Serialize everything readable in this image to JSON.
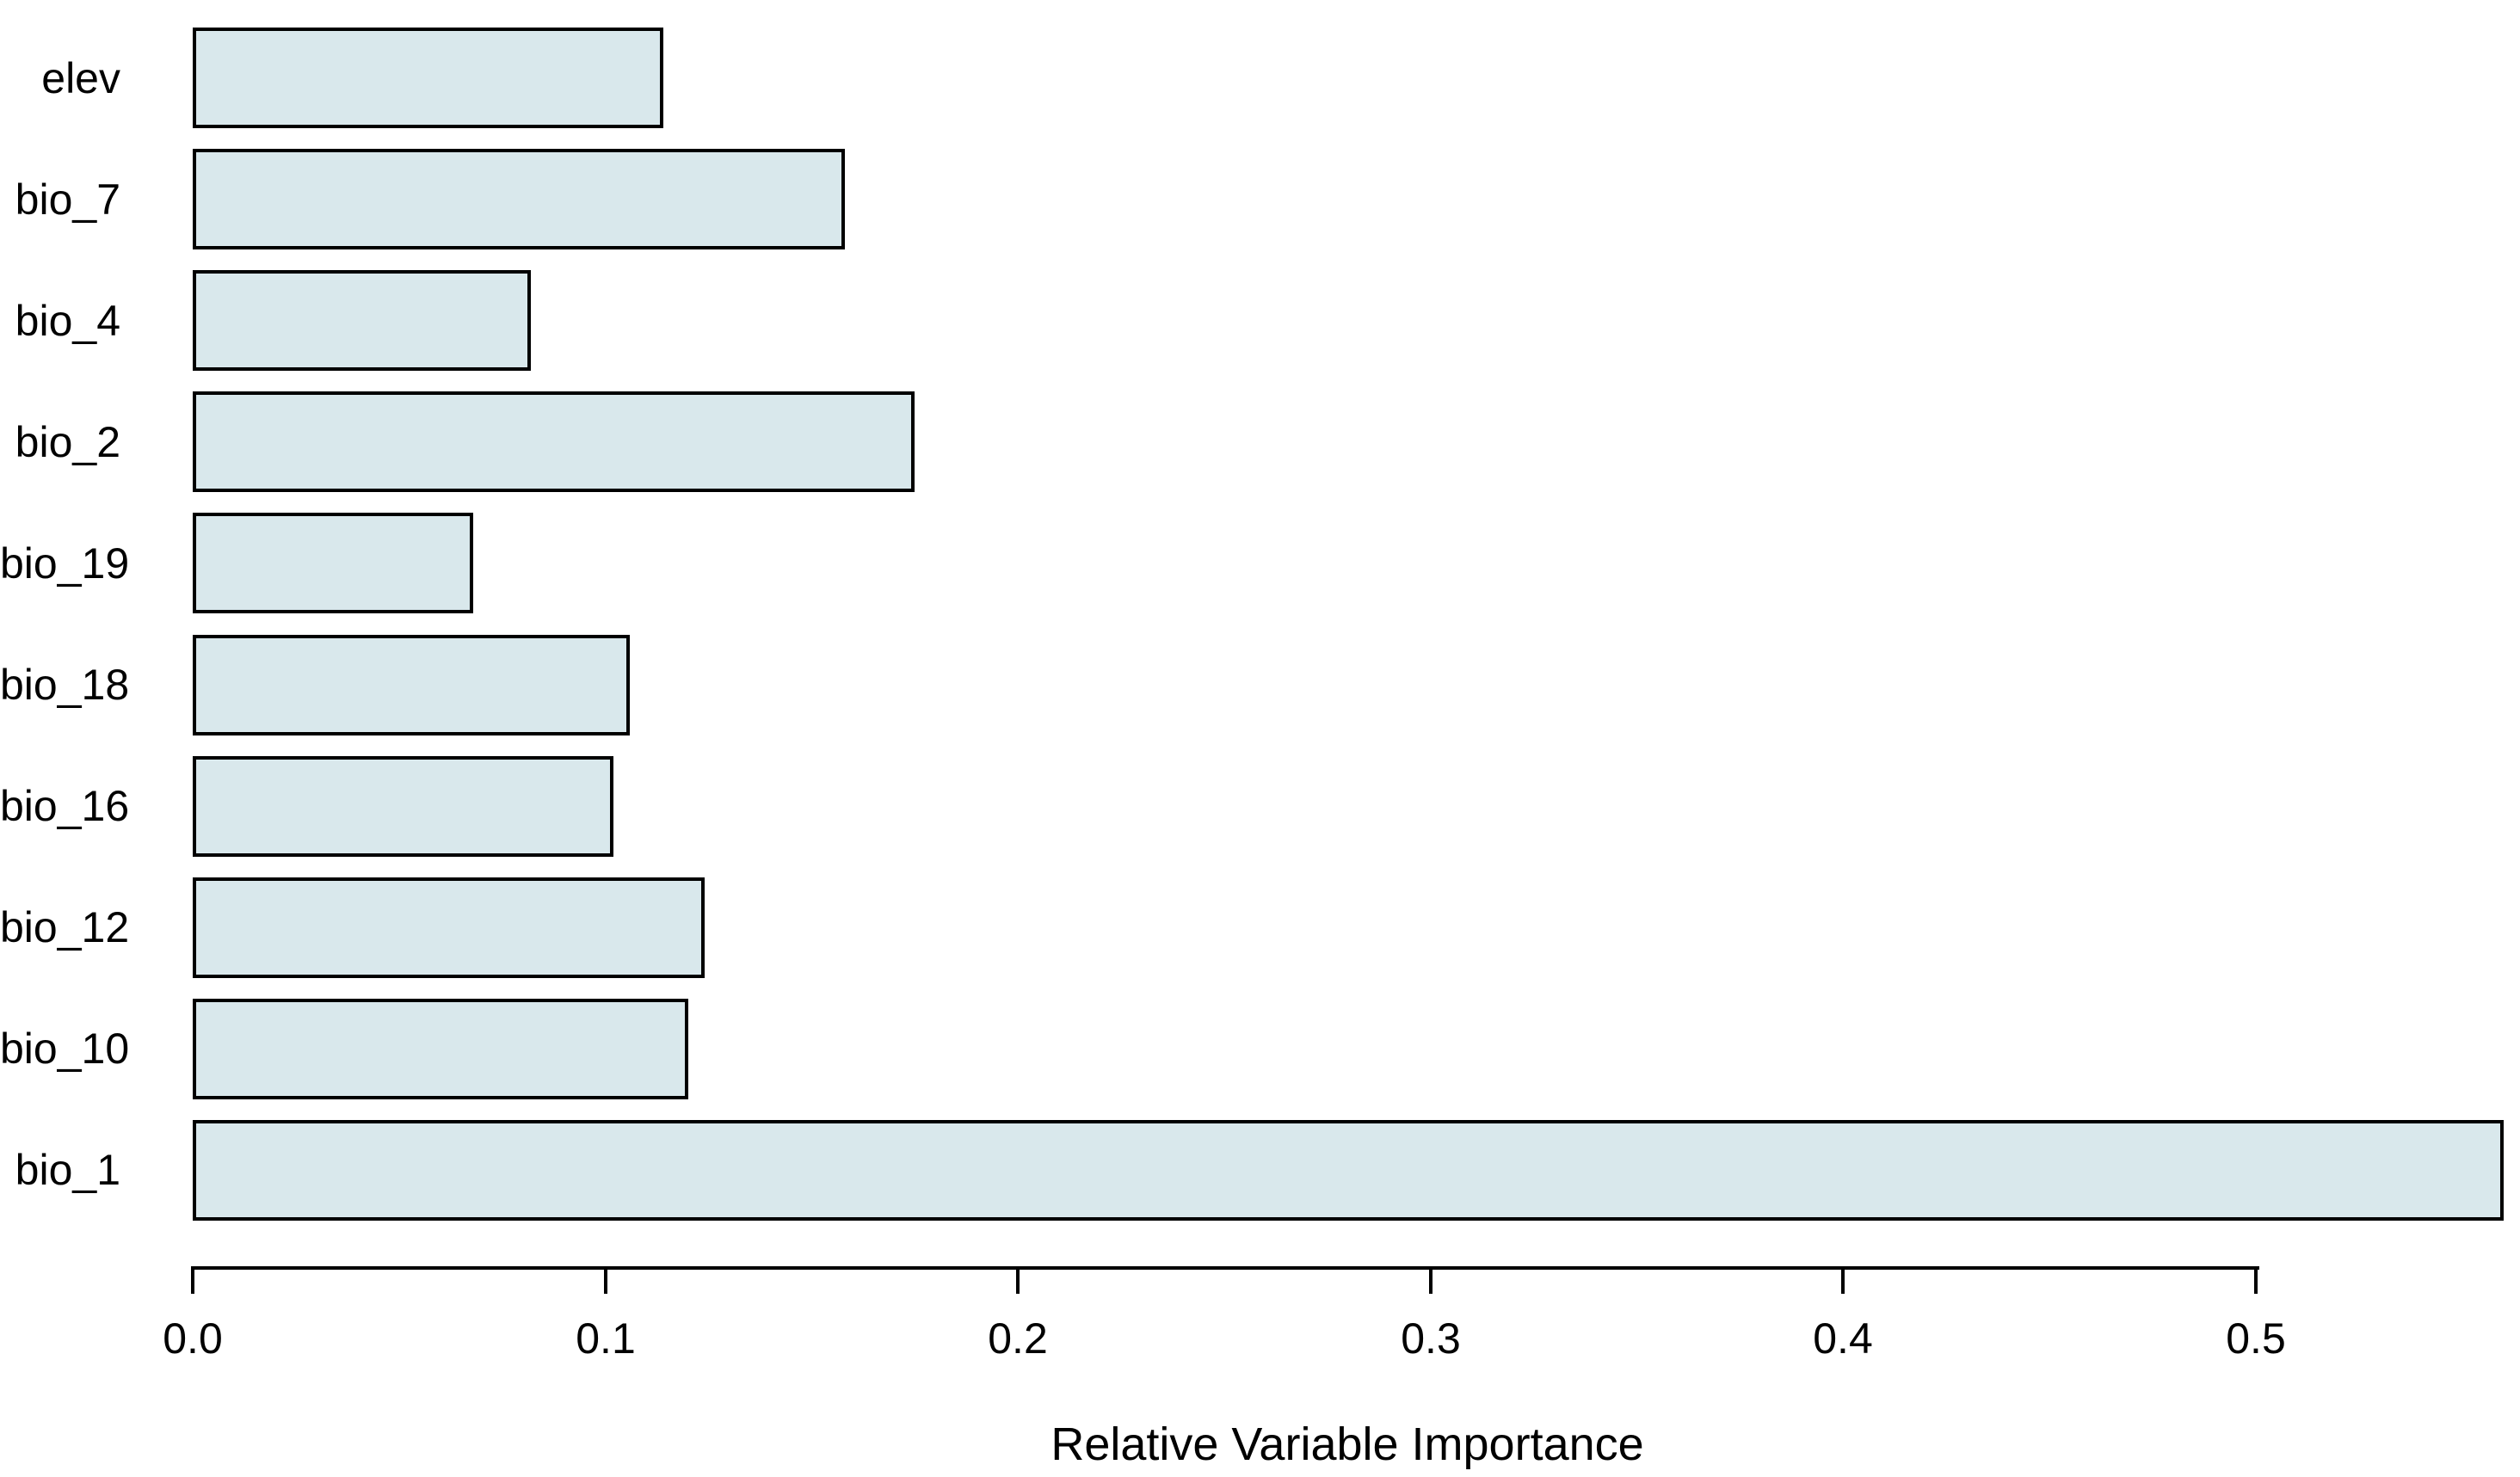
{
  "chart_data": {
    "type": "bar",
    "orientation": "horizontal",
    "title": "",
    "xlabel": "Relative Variable Importance",
    "ylabel": "",
    "categories": [
      "elev",
      "bio_7",
      "bio_4",
      "bio_2",
      "bio_19",
      "bio_18",
      "bio_16",
      "bio_12",
      "bio_10",
      "bio_1"
    ],
    "values": [
      0.114,
      0.158,
      0.082,
      0.175,
      0.068,
      0.106,
      0.102,
      0.124,
      0.12,
      0.56
    ],
    "x_ticks": [
      0.0,
      0.1,
      0.2,
      0.3,
      0.4,
      0.5
    ],
    "x_tick_labels": [
      "0.0",
      "0.1",
      "0.2",
      "0.3",
      "0.4",
      "0.5"
    ],
    "xlim": [
      0,
      0.56
    ],
    "grid": false,
    "legend": null,
    "bar_fill": "#d9e8ec",
    "bar_border": "#000000",
    "background": "#ffffff",
    "text_color": "#000000"
  }
}
